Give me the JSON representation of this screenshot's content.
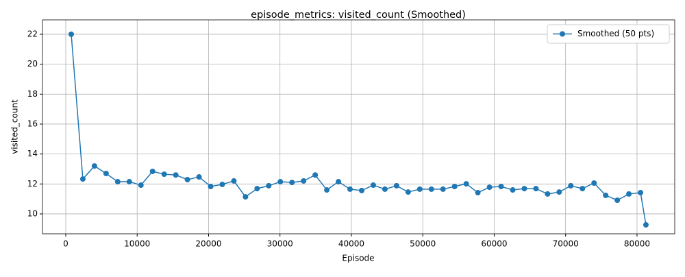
{
  "chart_data": {
    "type": "line",
    "title": "episode_metrics: visited_count (Smoothed)",
    "xlabel": "Episode",
    "ylabel": "visited_count",
    "x": [
      767,
      2394,
      4021,
      5648,
      7275,
      8902,
      10529,
      12156,
      13783,
      15410,
      17037,
      18664,
      20291,
      21918,
      23545,
      25172,
      26799,
      28426,
      30053,
      31680,
      33307,
      34934,
      36561,
      38188,
      39815,
      41442,
      43069,
      44696,
      46323,
      47950,
      49577,
      51204,
      52831,
      54458,
      56085,
      57712,
      59339,
      60966,
      62593,
      64220,
      65847,
      67474,
      69101,
      70728,
      72355,
      73982,
      75609,
      77236,
      78863,
      80490,
      81247
    ],
    "series": [
      {
        "name": "Smoothed (50 pts)",
        "color": "#1f77b4",
        "values": [
          22.0,
          12.33,
          13.2,
          12.7,
          12.15,
          12.15,
          11.92,
          12.84,
          12.65,
          12.6,
          12.29,
          12.47,
          11.83,
          11.97,
          12.2,
          11.14,
          11.69,
          11.88,
          12.15,
          12.1,
          12.2,
          12.6,
          11.6,
          12.15,
          11.65,
          11.56,
          11.92,
          11.65,
          11.88,
          11.46,
          11.65,
          11.65,
          11.65,
          11.83,
          12.01,
          11.42,
          11.78,
          11.83,
          11.6,
          11.69,
          11.69,
          11.33,
          11.46,
          11.88,
          11.69,
          12.06,
          11.24,
          10.91,
          11.33,
          11.42,
          9.27
        ]
      }
    ],
    "xlim": [
      -3260,
      85280
    ],
    "ylim": [
      8.67,
      22.96
    ],
    "xticks": [
      0,
      10000,
      20000,
      30000,
      40000,
      50000,
      60000,
      70000,
      80000
    ],
    "yticks": [
      10,
      12,
      14,
      16,
      18,
      20,
      22
    ],
    "grid": true,
    "legend": "upper right"
  }
}
